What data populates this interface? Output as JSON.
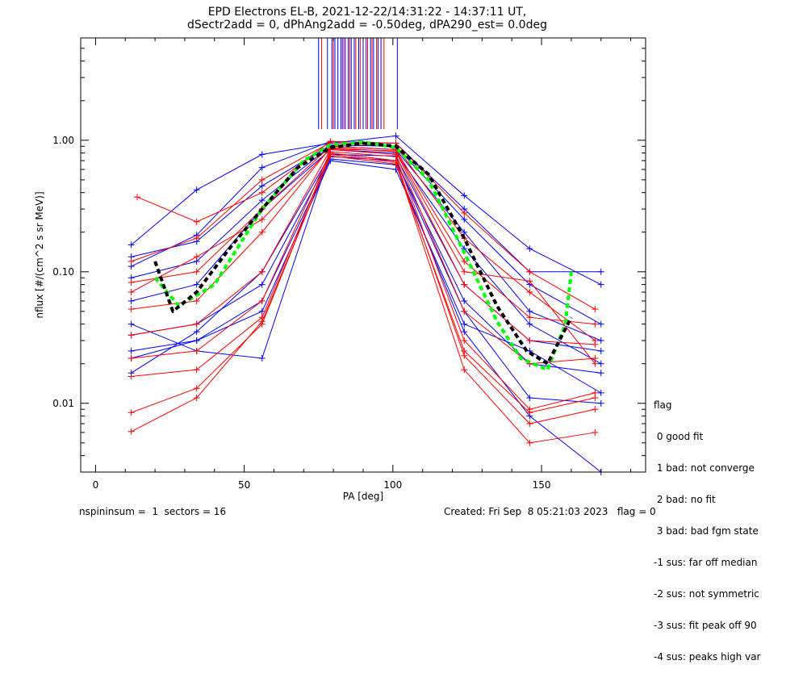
{
  "chart_data": {
    "type": "line",
    "title": "EPD Electrons EL-B, 2021-12-22/14:31:22 - 14:37:11 UT,",
    "subtitle": "dSectr2add = 0, dPhAng2add = -0.50deg, dPA290_est=   0.0deg",
    "xlabel": "PA [deg]",
    "ylabel": "nflux [#/(cm^2 s sr MeV)]",
    "xlim": [
      -5,
      185
    ],
    "ylim": [
      0.003,
      6
    ],
    "y_scale": "log",
    "x_ticks": [
      0,
      50,
      100,
      150
    ],
    "x_tick_labels": [
      "0",
      "50",
      "100",
      "150"
    ],
    "y_ticks": [
      0.01,
      0.1,
      1.0
    ],
    "y_tick_labels": [
      "0.01",
      "0.10",
      "1.00"
    ],
    "grid": false,
    "series": [
      {
        "color": "#0000ff",
        "x": [
          12,
          34,
          56,
          79,
          101,
          124,
          146,
          170
        ],
        "y": [
          0.16,
          0.42,
          0.78,
          0.95,
          1.08,
          0.38,
          0.15,
          0.08
        ]
      },
      {
        "color": "#0000ff",
        "x": [
          12,
          34,
          56,
          79,
          101,
          124,
          146,
          170
        ],
        "y": [
          0.11,
          0.19,
          0.62,
          0.98,
          0.95,
          0.3,
          0.1,
          0.1
        ]
      },
      {
        "color": "#0000ff",
        "x": [
          12,
          34,
          56,
          79,
          101,
          124,
          146,
          170
        ],
        "y": [
          0.022,
          0.03,
          0.05,
          0.7,
          0.6,
          0.04,
          0.025,
          0.012
        ]
      },
      {
        "color": "#0000ff",
        "x": [
          12,
          34,
          56,
          79,
          101,
          124,
          146,
          170
        ],
        "y": [
          0.04,
          0.025,
          0.022,
          0.8,
          0.7,
          0.05,
          0.011,
          0.01
        ]
      },
      {
        "color": "#0000ff",
        "x": [
          12,
          34,
          56,
          79,
          101,
          124,
          146,
          170
        ],
        "y": [
          0.09,
          0.12,
          0.35,
          0.9,
          0.85,
          0.2,
          0.05,
          0.03
        ]
      },
      {
        "color": "#0000ff",
        "x": [
          12,
          34,
          56,
          79,
          101,
          124,
          146,
          170
        ],
        "y": [
          0.06,
          0.08,
          0.3,
          0.85,
          0.8,
          0.15,
          0.04,
          0.02
        ]
      },
      {
        "color": "#0000ff",
        "x": [
          12,
          34,
          56,
          79,
          101,
          124,
          146,
          170
        ],
        "y": [
          0.13,
          0.17,
          0.45,
          0.92,
          0.9,
          0.25,
          0.08,
          0.04
        ]
      },
      {
        "color": "#0000ff",
        "x": [
          12,
          34,
          56,
          79,
          101,
          124,
          146,
          170
        ],
        "y": [
          0.033,
          0.04,
          0.08,
          0.75,
          0.7,
          0.06,
          0.02,
          0.017
        ]
      },
      {
        "color": "#0000ff",
        "x": [
          12,
          34,
          56,
          79,
          101,
          124,
          146,
          170
        ],
        "y": [
          0.025,
          0.03,
          0.06,
          0.72,
          0.65,
          0.035,
          0.008,
          0.003
        ]
      },
      {
        "color": "#0000ff",
        "x": [
          12,
          34,
          56,
          79,
          101,
          124,
          146,
          170
        ],
        "y": [
          0.017,
          0.035,
          0.1,
          0.78,
          0.76,
          0.08,
          0.03,
          0.025
        ]
      },
      {
        "color": "#ff0000",
        "x": [
          14,
          34,
          56,
          79,
          101,
          124,
          146,
          168
        ],
        "y": [
          0.37,
          0.24,
          0.4,
          0.98,
          0.95,
          0.28,
          0.1,
          0.052
        ]
      },
      {
        "color": "#ff0000",
        "x": [
          12,
          34,
          56,
          79,
          101,
          124,
          146,
          168
        ],
        "y": [
          0.12,
          0.18,
          0.5,
          0.96,
          0.9,
          0.18,
          0.07,
          0.03
        ]
      },
      {
        "color": "#ff0000",
        "x": [
          12,
          34,
          56,
          79,
          101,
          124,
          146,
          168
        ],
        "y": [
          0.083,
          0.1,
          0.3,
          0.9,
          0.85,
          0.12,
          0.045,
          0.04
        ]
      },
      {
        "color": "#ff0000",
        "x": [
          12,
          34,
          56,
          79,
          101,
          124,
          146,
          168
        ],
        "y": [
          0.052,
          0.06,
          0.2,
          0.88,
          0.82,
          0.08,
          0.03,
          0.028
        ]
      },
      {
        "color": "#ff0000",
        "x": [
          12,
          34,
          56,
          79,
          101,
          124,
          146,
          168
        ],
        "y": [
          0.033,
          0.04,
          0.1,
          0.85,
          0.78,
          0.05,
          0.02,
          0.022
        ]
      },
      {
        "color": "#ff0000",
        "x": [
          12,
          34,
          56,
          79,
          101,
          124,
          146,
          168
        ],
        "y": [
          0.022,
          0.025,
          0.06,
          0.82,
          0.75,
          0.03,
          0.009,
          0.012
        ]
      },
      {
        "color": "#ff0000",
        "x": [
          12,
          34,
          56,
          79,
          101,
          124,
          146,
          168
        ],
        "y": [
          0.016,
          0.018,
          0.045,
          0.8,
          0.7,
          0.023,
          0.007,
          0.009
        ]
      },
      {
        "color": "#ff0000",
        "x": [
          12,
          34,
          56,
          79,
          101,
          124,
          146,
          168
        ],
        "y": [
          0.0085,
          0.013,
          0.04,
          0.78,
          0.68,
          0.018,
          0.005,
          0.006
        ]
      },
      {
        "color": "#ff0000",
        "x": [
          12,
          34,
          56,
          79,
          101,
          124,
          146,
          168
        ],
        "y": [
          0.0061,
          0.011,
          0.042,
          0.76,
          0.66,
          0.025,
          0.0085,
          0.011
        ]
      },
      {
        "color": "#ff0000",
        "x": [
          12,
          34,
          56,
          79,
          101,
          124,
          146,
          168
        ],
        "y": [
          0.07,
          0.13,
          0.25,
          0.86,
          0.83,
          0.1,
          0.085,
          0.02
        ]
      }
    ],
    "fit_curves": [
      {
        "color": "#00ff00",
        "x": [
          20,
          28,
          40,
          56,
          70,
          79,
          90,
          101,
          112,
          124,
          135,
          143,
          152,
          158,
          160
        ],
        "y": [
          0.09,
          0.055,
          0.08,
          0.3,
          0.7,
          0.92,
          0.97,
          0.88,
          0.5,
          0.14,
          0.042,
          0.022,
          0.018,
          0.04,
          0.1
        ]
      },
      {
        "color": "#000000",
        "x": [
          20,
          26,
          34,
          45,
          56,
          68,
          79,
          90,
          101,
          112,
          124,
          135,
          145,
          152,
          160
        ],
        "y": [
          0.12,
          0.05,
          0.07,
          0.15,
          0.3,
          0.62,
          0.88,
          0.95,
          0.9,
          0.55,
          0.18,
          0.055,
          0.025,
          0.02,
          0.045
        ]
      }
    ],
    "vertical_lines": {
      "blue_x": [
        75,
        78,
        79.5,
        80.5,
        81.5,
        82.5,
        83,
        84,
        85,
        86,
        87,
        88.5,
        90,
        91,
        92.5,
        93.5,
        95,
        96,
        101.5
      ],
      "red_x": [
        76,
        80,
        83.5,
        85.5,
        87.5,
        89,
        91.5,
        93,
        94.5,
        97
      ]
    },
    "legend": {
      "placement": "lower-right outside",
      "title": "flag",
      "entries": [
        " 0 good fit",
        " 1 bad: not converge",
        " 2 bad: no fit",
        " 3 bad: bad fgm state",
        "-1 sus: far off median",
        "-2 sus: not symmetric",
        "-3 sus: fit peak off 90",
        "-4 sus: peaks high var"
      ]
    }
  },
  "footer": {
    "left": "nspininsum =  1  sectors = 16",
    "right": "Created: Fri Sep  8 05:21:03 2023   flag = 0"
  }
}
